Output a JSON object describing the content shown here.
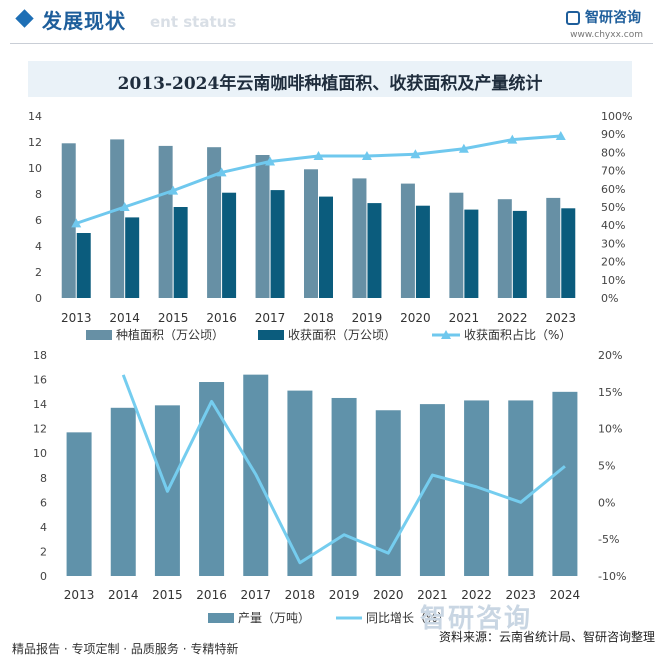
{
  "header": {
    "title": "发展现状",
    "subtitle": "ent status",
    "brand": "智研咨询",
    "brand_url": "www.chyxx.com"
  },
  "title": "2013-2024年云南咖啡种植面积、收获面积及产量统计",
  "footer": {
    "left": "精品报告 · 专项定制 · 品质服务 · 专精特新",
    "source": "资料来源：云南省统计局、智研咨询整理",
    "watermark": "智研咨询"
  },
  "colors": {
    "planting": "#6790a5",
    "harvest": "#0b5c7d",
    "ratio_line": "#6fc8ee",
    "production": "#6092aa",
    "growth_line": "#75cdef"
  },
  "chart_data": [
    {
      "type": "bar",
      "categories": [
        "2013",
        "2014",
        "2015",
        "2016",
        "2017",
        "2018",
        "2019",
        "2020",
        "2021",
        "2022",
        "2023"
      ],
      "series": [
        {
          "name": "种植面积（万公顷）",
          "type": "bar",
          "axis": "left",
          "values": [
            11.9,
            12.2,
            11.7,
            11.6,
            11.0,
            9.9,
            9.2,
            8.8,
            8.1,
            7.6,
            7.7
          ]
        },
        {
          "name": "收获面积（万公顷）",
          "type": "bar",
          "axis": "left",
          "values": [
            5.0,
            6.2,
            7.0,
            8.1,
            8.3,
            7.8,
            7.3,
            7.1,
            6.8,
            6.7,
            6.9
          ]
        },
        {
          "name": "收获面积占比（%）",
          "type": "line",
          "axis": "right",
          "marker": "triangle",
          "values": [
            41,
            50,
            59,
            69,
            75,
            78,
            78,
            79,
            82,
            87,
            89
          ]
        }
      ],
      "y_left": {
        "min": 0,
        "max": 14,
        "ticks": [
          "0",
          "2",
          "4",
          "6",
          "8",
          "10",
          "12",
          "14"
        ]
      },
      "y_right": {
        "min": 0,
        "max": 100,
        "ticks": [
          "0%",
          "10%",
          "20%",
          "30%",
          "40%",
          "50%",
          "60%",
          "70%",
          "80%",
          "90%",
          "100%"
        ]
      },
      "legend": "bottom"
    },
    {
      "type": "bar",
      "categories": [
        "2013",
        "2014",
        "2015",
        "2016",
        "2017",
        "2018",
        "2019",
        "2020",
        "2021",
        "2022",
        "2023",
        "2024"
      ],
      "series": [
        {
          "name": "产量（万吨）",
          "type": "bar",
          "axis": "left",
          "values": [
            11.7,
            13.7,
            13.9,
            15.8,
            16.4,
            15.1,
            14.5,
            13.5,
            14.0,
            14.3,
            14.3,
            15.0
          ]
        },
        {
          "name": "同比增长（%）",
          "type": "line",
          "axis": "right",
          "values": [
            null,
            17.3,
            1.5,
            13.7,
            3.8,
            -8.2,
            -4.4,
            -6.9,
            3.7,
            2.1,
            0.0,
            4.9
          ]
        }
      ],
      "y_left": {
        "min": 0,
        "max": 18,
        "ticks": [
          "0",
          "2",
          "4",
          "6",
          "8",
          "10",
          "12",
          "14",
          "16",
          "18"
        ]
      },
      "y_right": {
        "min": -10,
        "max": 20,
        "ticks": [
          "-10%",
          "-5%",
          "0%",
          "5%",
          "10%",
          "15%",
          "20%"
        ]
      },
      "legend": "bottom"
    }
  ]
}
